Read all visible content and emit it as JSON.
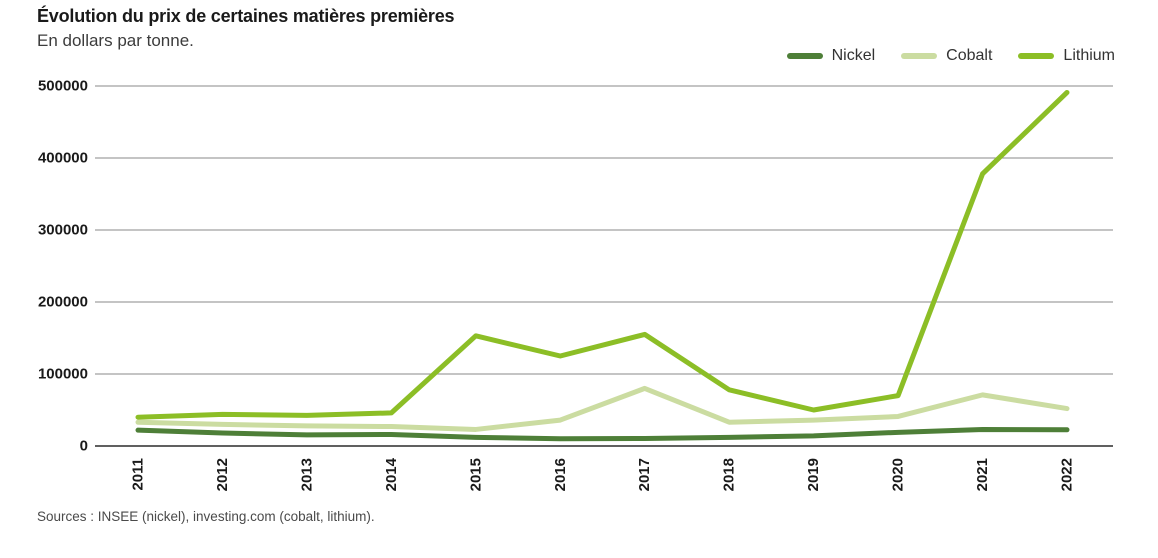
{
  "footer": {
    "sources": "Sources : INSEE (nickel), investing.com (cobalt, lithium)."
  },
  "chart_data": {
    "type": "line",
    "title": "Évolution du prix de certaines matières premières",
    "subtitle": "En dollars par tonne.",
    "xlabel": "",
    "ylabel": "En dollars par tonne",
    "x": [
      "2011",
      "2012",
      "2013",
      "2014",
      "2015",
      "2016",
      "2017",
      "2018",
      "2019",
      "2020",
      "2021",
      "2022"
    ],
    "series": [
      {
        "name": "Nickel",
        "color": "#4e7f38",
        "values": [
          22000,
          18000,
          15500,
          16000,
          12000,
          10000,
          10500,
          12000,
          14000,
          19000,
          23000,
          22500
        ]
      },
      {
        "name": "Cobalt",
        "color": "#cbdca1",
        "values": [
          33000,
          30000,
          28000,
          27000,
          23000,
          36000,
          80000,
          33000,
          36000,
          41000,
          71000,
          52000
        ]
      },
      {
        "name": "Lithium",
        "color": "#8cbe26",
        "values": [
          40000,
          44000,
          42500,
          46000,
          153000,
          125000,
          155000,
          78000,
          50000,
          70000,
          378000,
          491000
        ]
      }
    ],
    "ylim": [
      0,
      500000
    ],
    "y_ticks": [
      0,
      100000,
      200000,
      300000,
      400000,
      500000
    ],
    "grid": true,
    "legend_position": "top-right",
    "colors": {
      "gridline": "#8a8a8a",
      "zero_axis": "#2b2b2b",
      "text": "#1a1a1a"
    }
  }
}
